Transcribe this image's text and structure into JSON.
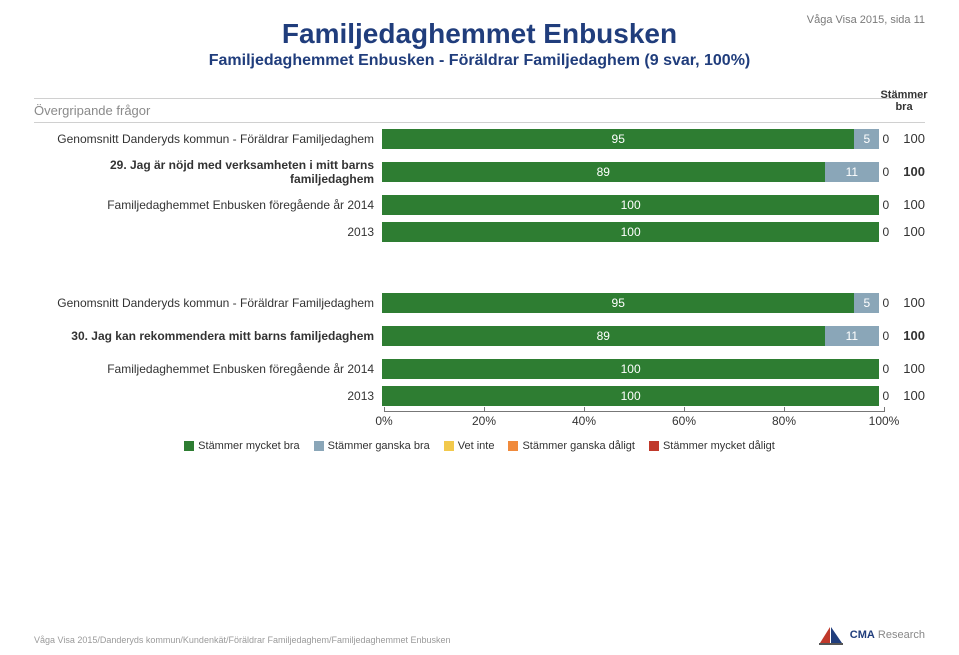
{
  "header": {
    "pageTag": "Våga Visa 2015, sida 11",
    "title": "Familjedaghemmet Enbusken",
    "subtitle": "Familjedaghemmet Enbusken - Föräldrar Familjedaghem (9 svar, 100%)"
  },
  "section": {
    "title": "Övergripande frågor",
    "sumHeader": "Stämmer bra"
  },
  "palette": {
    "mycket_bra": "#2e7d32",
    "ganska_bra": "#8aa6b8",
    "vet_inte": "#f2c94c",
    "ganska_dalig": "#f08a3c",
    "mycket_dalig": "#c0392b",
    "title": "#203d7c",
    "text": "#333333",
    "grid": "#777777"
  },
  "groups": [
    {
      "rows": [
        {
          "label": "Genomsnitt Danderyds kommun - Föräldrar Familjedaghem",
          "bold": false,
          "sum": 100,
          "segments": [
            {
              "key": "mycket_bra",
              "value": 95,
              "show": true
            },
            {
              "key": "ganska_bra",
              "value": 5,
              "show": true
            },
            {
              "key": "vet_inte",
              "value": 0,
              "show": true
            }
          ]
        },
        {
          "label": "29. Jag är nöjd med verksamheten i mitt barns familjedaghem",
          "bold": true,
          "sum": 100,
          "segments": [
            {
              "key": "mycket_bra",
              "value": 89,
              "show": true
            },
            {
              "key": "ganska_bra",
              "value": 11,
              "show": true
            },
            {
              "key": "vet_inte",
              "value": 0,
              "show": true
            }
          ]
        },
        {
          "label": "Familjedaghemmet Enbusken föregående år 2014",
          "bold": false,
          "sum": 100,
          "segments": [
            {
              "key": "mycket_bra",
              "value": 100,
              "show": true
            },
            {
              "key": "vet_inte",
              "value": 0,
              "show": true
            }
          ]
        },
        {
          "label": "2013",
          "bold": false,
          "sum": 100,
          "segments": [
            {
              "key": "mycket_bra",
              "value": 100,
              "show": true
            },
            {
              "key": "vet_inte",
              "value": 0,
              "show": true
            }
          ]
        }
      ]
    },
    {
      "rows": [
        {
          "label": "Genomsnitt Danderyds kommun - Föräldrar Familjedaghem",
          "bold": false,
          "sum": 100,
          "segments": [
            {
              "key": "mycket_bra",
              "value": 95,
              "show": true
            },
            {
              "key": "ganska_bra",
              "value": 5,
              "show": true
            },
            {
              "key": "vet_inte",
              "value": 0,
              "show": true
            }
          ]
        },
        {
          "label": "30. Jag kan rekommendera mitt barns familjedaghem",
          "bold": true,
          "sum": 100,
          "segments": [
            {
              "key": "mycket_bra",
              "value": 89,
              "show": true
            },
            {
              "key": "ganska_bra",
              "value": 11,
              "show": true
            },
            {
              "key": "vet_inte",
              "value": 0,
              "show": true
            }
          ]
        },
        {
          "label": "Familjedaghemmet Enbusken föregående år 2014",
          "bold": false,
          "sum": 100,
          "segments": [
            {
              "key": "mycket_bra",
              "value": 100,
              "show": true
            },
            {
              "key": "vet_inte",
              "value": 0,
              "show": true
            }
          ]
        },
        {
          "label": "2013",
          "bold": false,
          "sum": 100,
          "segments": [
            {
              "key": "mycket_bra",
              "value": 100,
              "show": true
            },
            {
              "key": "vet_inte",
              "value": 0,
              "show": true
            }
          ]
        }
      ]
    }
  ],
  "axis": {
    "ticks": [
      "0%",
      "20%",
      "40%",
      "60%",
      "80%",
      "100%"
    ],
    "positions": [
      0,
      20,
      40,
      60,
      80,
      100
    ]
  },
  "legend": [
    {
      "key": "mycket_bra",
      "label": "Stämmer mycket bra"
    },
    {
      "key": "ganska_bra",
      "label": "Stämmer ganska bra"
    },
    {
      "key": "vet_inte",
      "label": "Vet inte"
    },
    {
      "key": "ganska_dalig",
      "label": "Stämmer ganska dåligt"
    },
    {
      "key": "mycket_dalig",
      "label": "Stämmer mycket dåligt"
    }
  ],
  "footer": {
    "note": "Våga Visa 2015/Danderyds kommun/Kundenkät/Föräldrar Familjedaghem/Familjedaghemmet Enbusken",
    "brand1": "CMA",
    "brand2": "Research"
  }
}
